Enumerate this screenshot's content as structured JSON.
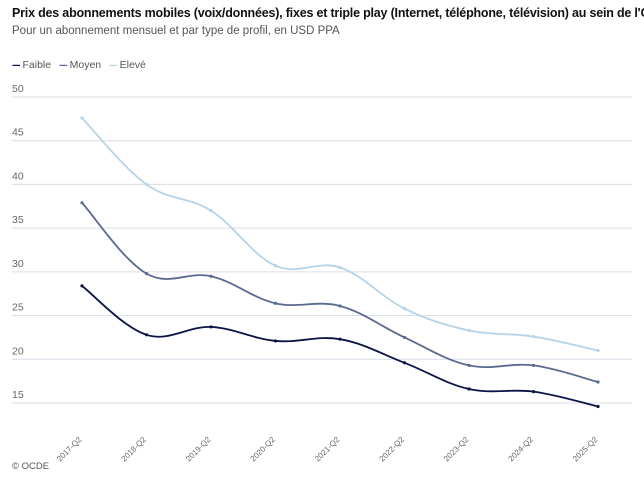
{
  "chart_data": {
    "type": "line",
    "title": "Prix des abonnements mobiles (voix/données), fixes et triple play (Internet, téléphone, télévision) au sein de l'OCDE",
    "subtitle": "Pour un abonnement mensuel et par type de profil, en USD PPA",
    "xlabel": "",
    "ylabel": "",
    "ylim": [
      15,
      50
    ],
    "yticks": [
      "15",
      "20",
      "25",
      "30",
      "35",
      "40",
      "45",
      "50"
    ],
    "grid": true,
    "legend_position": "top-left",
    "categories": [
      "2017-Q2",
      "2018-Q2",
      "2019-Q2",
      "2020-Q2",
      "2021-Q2",
      "2022-Q2",
      "2023-Q2",
      "2024-Q2",
      "2025-Q2"
    ],
    "series": [
      {
        "name": "Faible",
        "color": "#0b1447",
        "values": [
          28.4,
          22.8,
          23.7,
          22.1,
          22.3,
          19.6,
          16.6,
          16.3,
          14.6
        ]
      },
      {
        "name": "Moyen",
        "color": "#5b6a8f",
        "values": [
          37.9,
          29.8,
          29.5,
          26.4,
          26.1,
          22.5,
          19.3,
          19.3,
          17.4
        ]
      },
      {
        "name": "Elevé",
        "color": "#b7d3e6",
        "values": [
          47.6,
          40.0,
          37.0,
          30.7,
          30.5,
          25.8,
          23.3,
          22.6,
          21.0
        ]
      }
    ],
    "source": "© OCDE"
  }
}
